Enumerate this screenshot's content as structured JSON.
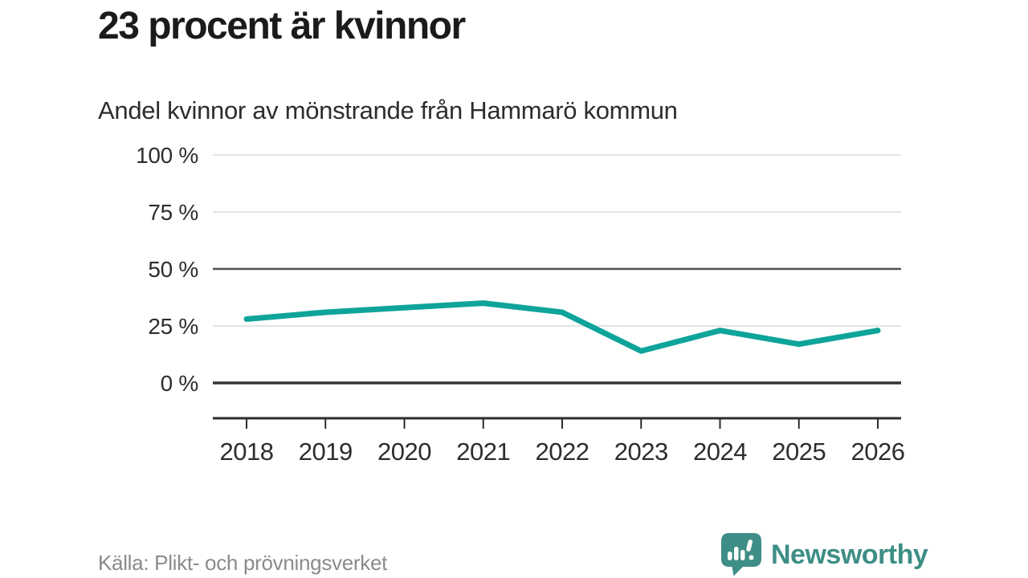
{
  "header": {
    "title": "23 procent är kvinnor",
    "subtitle": "Andel kvinnor av mönstrande från Hammarö kommun"
  },
  "footer": {
    "source": "Källa: Plikt- och prövningsverket",
    "brand": "Newsworthy",
    "logo_icon": "speech-bubble-bar-chart-icon"
  },
  "colors": {
    "line": "#0ea49a",
    "brand": "#3d8e86",
    "title_text": "#1b1b1b",
    "body_text": "#2d2d2d",
    "muted_text": "#8b8b8b",
    "grid_light": "#e4e4e4",
    "grid_mid": "#515151",
    "grid_zero": "#333333"
  },
  "chart_data": {
    "type": "line",
    "title": "Andel kvinnor av mönstrande från Hammarö kommun",
    "x": [
      2018,
      2019,
      2020,
      2021,
      2022,
      2023,
      2024,
      2025,
      2026
    ],
    "series": [
      {
        "name": "andel-kvinnor-procent",
        "values": [
          28,
          31,
          33,
          35,
          31,
          14,
          23,
          17,
          23
        ]
      }
    ],
    "xlabel": "",
    "ylabel": "",
    "unit": "%",
    "y_ticks": [
      0,
      25,
      50,
      75,
      100
    ],
    "y_tick_suffix": " %",
    "ylim": [
      0,
      100
    ],
    "grid": true,
    "legend": false,
    "emphasized_gridlines": [
      50
    ],
    "zero_line_emphasized": true
  }
}
